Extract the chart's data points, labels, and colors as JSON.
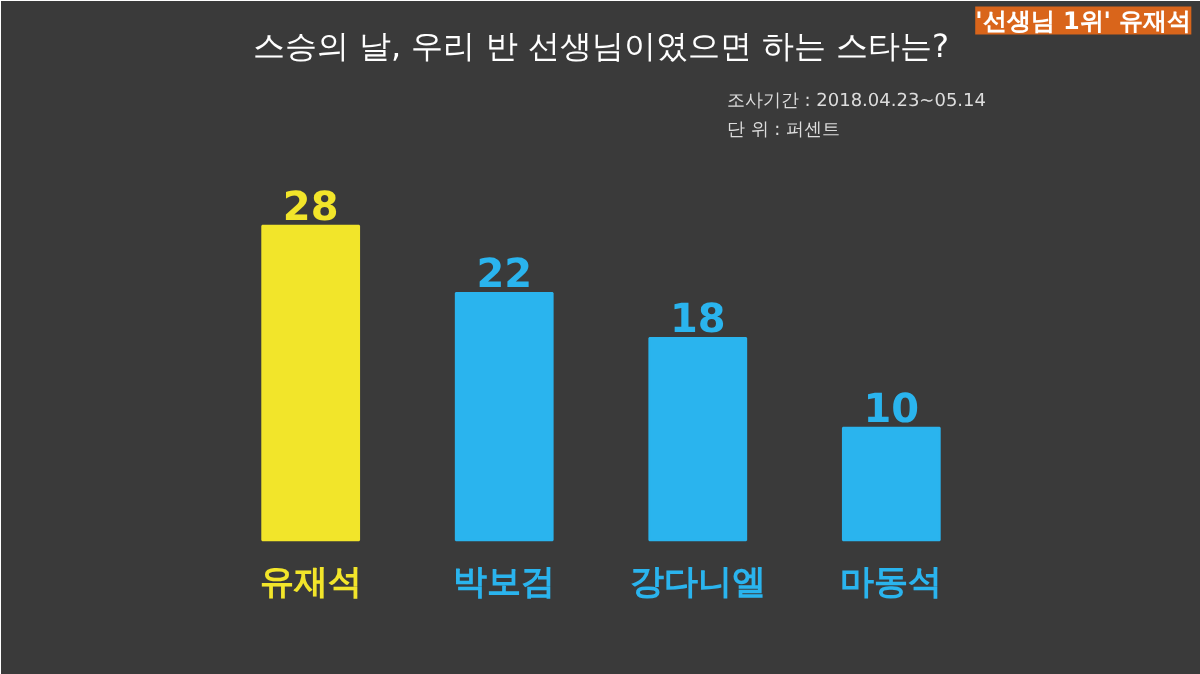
{
  "chart_data": {
    "type": "bar",
    "title": "스승의 날, 우리 반 선생님이였으면 하는 스타는?",
    "subtitle": "'선생님 1위' 유재석",
    "categories": [
      "유재석",
      "박보검",
      "강다니엘",
      "마동석"
    ],
    "values": [
      28,
      22,
      18,
      10
    ],
    "colors": [
      "#f2e52a",
      "#2ab4ee",
      "#2ab4ee",
      "#2ab4ee"
    ],
    "data_labels": true,
    "grid": false,
    "annotations": [
      "조사기간 : 2018.04.23~05.14",
      "단    위 : 퍼센트"
    ]
  }
}
